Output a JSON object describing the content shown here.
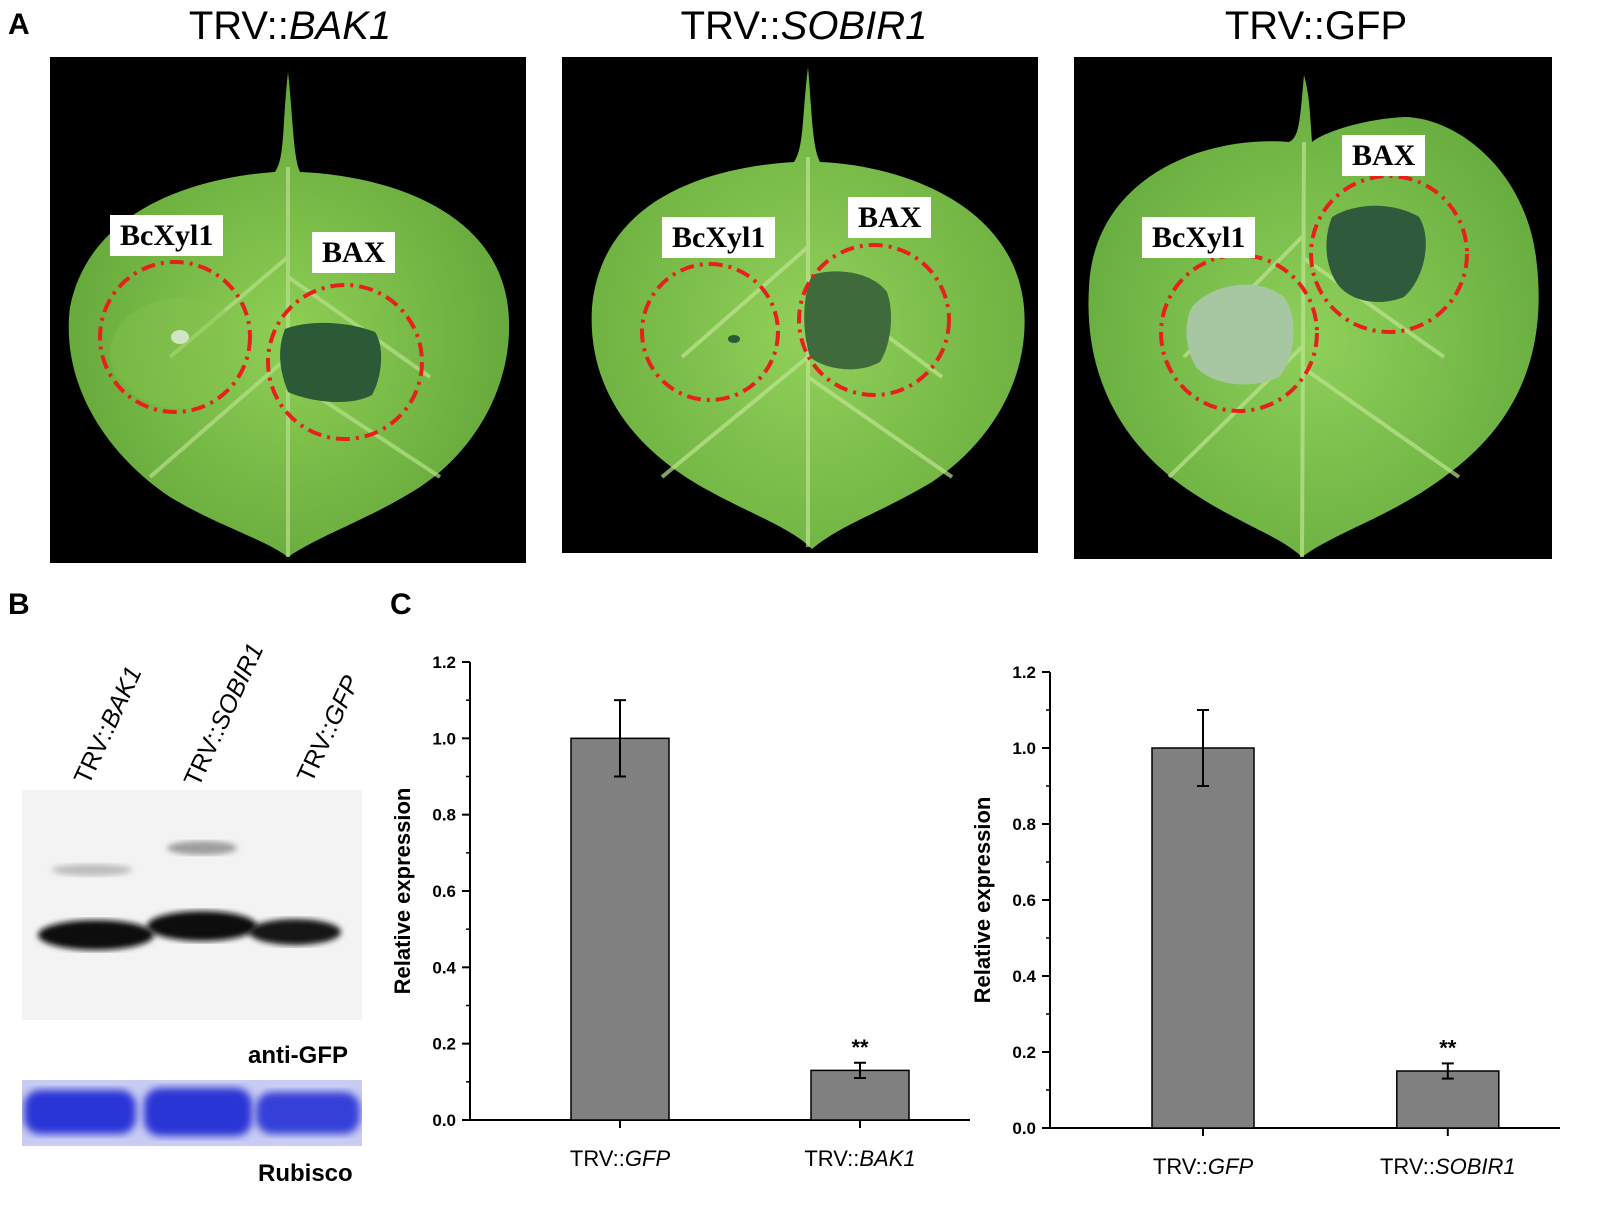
{
  "figure": {
    "panel_a": {
      "letter": "A",
      "leaves": [
        {
          "title_prefix": "TRV::",
          "title_gene": "BAK1",
          "left_spot": "BcXyl1",
          "right_spot": "BAX"
        },
        {
          "title_prefix": "TRV::",
          "title_gene": "SOBIR1",
          "left_spot": "BcXyl1",
          "right_spot": "BAX"
        },
        {
          "title_prefix": "TRV::",
          "title_gene": "GFP",
          "left_spot": "BcXyl1",
          "right_spot": "BAX"
        }
      ]
    },
    "panel_b": {
      "letter": "B",
      "lanes": [
        {
          "prefix": "TRV::",
          "gene": "BAK1"
        },
        {
          "prefix": "TRV::",
          "gene": "SOBIR1"
        },
        {
          "prefix": "TRV::",
          "gene": "GFP"
        }
      ],
      "antibody_label": "anti-GFP",
      "loading_label": "Rubisco"
    },
    "panel_c": {
      "letter": "C"
    }
  },
  "colors": {
    "bar_fill": "#808080",
    "leaf_green": "#7cc04a",
    "circle_red": "#e8201c",
    "rubisco_blue": "#2a35d6"
  },
  "chart_data": [
    {
      "type": "bar",
      "categories": [
        "GFP",
        "BAK1"
      ],
      "category_prefix": "TRV::",
      "values": [
        1.0,
        0.13
      ],
      "errors": [
        0.1,
        0.02
      ],
      "annotations": [
        "",
        "**"
      ],
      "ylabel": "Relative expression",
      "ylim": [
        0,
        1.2
      ],
      "yticks": [
        "0.0",
        "0.2",
        "0.4",
        "0.6",
        "0.8",
        "1.0",
        "1.2"
      ]
    },
    {
      "type": "bar",
      "categories": [
        "GFP",
        "SOBIR1"
      ],
      "category_prefix": "TRV::",
      "values": [
        1.0,
        0.15
      ],
      "errors": [
        0.1,
        0.02
      ],
      "annotations": [
        "",
        "**"
      ],
      "ylabel": "Relative expression",
      "ylim": [
        0,
        1.2
      ],
      "yticks": [
        "0.0",
        "0.2",
        "0.4",
        "0.6",
        "0.8",
        "1.0",
        "1.2"
      ]
    }
  ]
}
